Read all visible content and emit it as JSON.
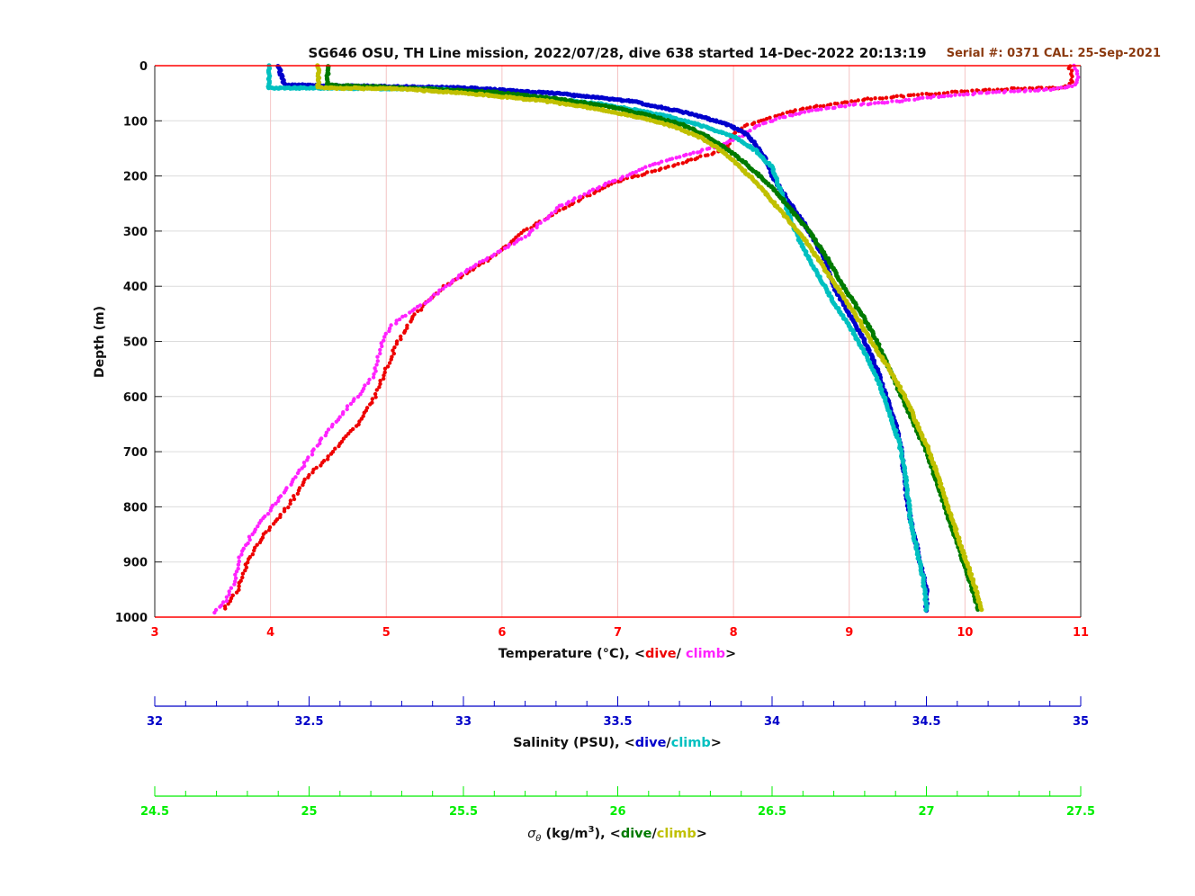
{
  "title": "SG646 OSU, TH Line mission, 2022/07/28, dive 638 started 14-Dec-2022 20:13:19",
  "serial_text": "Serial #: 0371  CAL: 25-Sep-2021",
  "colors": {
    "temp_dive": "#ee0000",
    "temp_climb": "#ff22ff",
    "sal_dive": "#0000cc",
    "sal_climb": "#00c0c0",
    "sig_dive": "#007a00",
    "sig_climb": "#c0c000",
    "temp_axis": "#ff0000",
    "sal_axis": "#0000c8",
    "sig_axis": "#00ee00",
    "serial": "#8b3a10"
  },
  "chart_data": {
    "type": "scatter",
    "ylabel": "Depth (m)",
    "ylim": [
      0,
      1000
    ],
    "y_ticks": [
      0,
      100,
      200,
      300,
      400,
      500,
      600,
      700,
      800,
      900,
      1000
    ],
    "grid": true,
    "axes": [
      {
        "id": "temperature",
        "label_main": "Temperature (°C), <",
        "label_dive": "dive",
        "label_sep": "/ ",
        "label_climb": "climb",
        "label_end": ">",
        "xlim": [
          3,
          11
        ],
        "ticks": [
          "3",
          "4",
          "5",
          "6",
          "7",
          "8",
          "9",
          "10",
          "11"
        ]
      },
      {
        "id": "salinity",
        "label_main": "Salinity (PSU), <",
        "label_dive": "dive",
        "label_sep": "/",
        "label_climb": "climb",
        "label_end": ">",
        "xlim": [
          32,
          35
        ],
        "ticks": [
          "32",
          "32.5",
          "33",
          "33.5",
          "34",
          "34.5",
          "35"
        ]
      },
      {
        "id": "sigma",
        "label_sym": "σ",
        "label_sub": "θ",
        "label_main": " (kg/m",
        "label_sup": "3",
        "label_main2": "), <",
        "label_dive": "dive",
        "label_sep": "/",
        "label_climb": "climb",
        "label_end": ">",
        "xlim": [
          24.5,
          27.5
        ],
        "ticks": [
          "24.5",
          "25",
          "25.5",
          "26",
          "26.5",
          "27",
          "27.5"
        ]
      }
    ],
    "series": [
      {
        "axis": "temperature",
        "color_key": "temp_dive",
        "style": "dots",
        "points": [
          [
            10.9,
            0
          ],
          [
            10.92,
            15
          ],
          [
            10.93,
            30
          ],
          [
            10.85,
            40
          ],
          [
            10.4,
            42
          ],
          [
            10.0,
            46
          ],
          [
            9.6,
            53
          ],
          [
            9.2,
            60
          ],
          [
            8.9,
            68
          ],
          [
            8.6,
            78
          ],
          [
            8.35,
            92
          ],
          [
            8.1,
            110
          ],
          [
            8.0,
            125
          ],
          [
            7.95,
            150
          ],
          [
            7.5,
            180
          ],
          [
            7.0,
            210
          ],
          [
            6.6,
            250
          ],
          [
            6.2,
            300
          ],
          [
            5.9,
            350
          ],
          [
            5.5,
            400
          ],
          [
            5.25,
            450
          ],
          [
            5.1,
            500
          ],
          [
            5.0,
            550
          ],
          [
            4.9,
            600
          ],
          [
            4.75,
            650
          ],
          [
            4.55,
            700
          ],
          [
            4.3,
            750
          ],
          [
            4.15,
            800
          ],
          [
            3.95,
            850
          ],
          [
            3.8,
            900
          ],
          [
            3.72,
            950
          ],
          [
            3.58,
            990
          ]
        ]
      },
      {
        "axis": "temperature",
        "color_key": "temp_climb",
        "style": "dots",
        "points": [
          [
            10.95,
            0
          ],
          [
            10.97,
            20
          ],
          [
            10.96,
            35
          ],
          [
            10.8,
            42
          ],
          [
            10.3,
            48
          ],
          [
            9.8,
            55
          ],
          [
            9.4,
            65
          ],
          [
            9.0,
            72
          ],
          [
            8.65,
            82
          ],
          [
            8.4,
            95
          ],
          [
            8.2,
            110
          ],
          [
            8.1,
            125
          ],
          [
            7.8,
            150
          ],
          [
            7.3,
            180
          ],
          [
            6.9,
            215
          ],
          [
            6.5,
            255
          ],
          [
            6.2,
            310
          ],
          [
            5.7,
            370
          ],
          [
            5.4,
            420
          ],
          [
            5.05,
            470
          ],
          [
            4.95,
            510
          ],
          [
            4.9,
            560
          ],
          [
            4.75,
            600
          ],
          [
            4.5,
            660
          ],
          [
            4.3,
            720
          ],
          [
            4.1,
            780
          ],
          [
            3.9,
            830
          ],
          [
            3.75,
            880
          ],
          [
            3.7,
            930
          ],
          [
            3.62,
            970
          ],
          [
            3.5,
            995
          ]
        ]
      },
      {
        "axis": "salinity",
        "color_key": "sal_dive",
        "style": "thick",
        "points": [
          [
            32.4,
            0
          ],
          [
            32.42,
            35
          ],
          [
            33.0,
            40
          ],
          [
            33.3,
            50
          ],
          [
            33.55,
            65
          ],
          [
            33.72,
            85
          ],
          [
            33.85,
            105
          ],
          [
            33.92,
            125
          ],
          [
            33.95,
            145
          ],
          [
            33.98,
            170
          ],
          [
            34.0,
            200
          ],
          [
            34.06,
            250
          ],
          [
            34.12,
            300
          ],
          [
            34.17,
            350
          ],
          [
            34.2,
            400
          ],
          [
            34.25,
            450
          ],
          [
            34.3,
            500
          ],
          [
            34.34,
            550
          ],
          [
            34.37,
            600
          ],
          [
            34.4,
            650
          ],
          [
            34.42,
            700
          ],
          [
            34.43,
            750
          ],
          [
            34.44,
            800
          ],
          [
            34.46,
            850
          ],
          [
            34.48,
            900
          ],
          [
            34.5,
            950
          ],
          [
            34.5,
            990
          ]
        ]
      },
      {
        "axis": "salinity",
        "color_key": "sal_climb",
        "style": "thick",
        "points": [
          [
            32.37,
            0
          ],
          [
            32.37,
            40
          ],
          [
            32.9,
            42
          ],
          [
            33.2,
            55
          ],
          [
            33.45,
            70
          ],
          [
            33.65,
            90
          ],
          [
            33.78,
            110
          ],
          [
            33.88,
            130
          ],
          [
            33.95,
            155
          ],
          [
            34.0,
            185
          ],
          [
            34.03,
            230
          ],
          [
            34.06,
            280
          ],
          [
            34.1,
            330
          ],
          [
            34.15,
            380
          ],
          [
            34.2,
            430
          ],
          [
            34.26,
            480
          ],
          [
            34.31,
            530
          ],
          [
            34.35,
            580
          ],
          [
            34.38,
            630
          ],
          [
            34.41,
            680
          ],
          [
            34.43,
            730
          ],
          [
            34.44,
            780
          ],
          [
            34.45,
            830
          ],
          [
            34.47,
            880
          ],
          [
            34.49,
            930
          ],
          [
            34.5,
            990
          ]
        ]
      },
      {
        "axis": "sigma",
        "color_key": "sig_dive",
        "style": "thick",
        "points": [
          [
            25.06,
            0
          ],
          [
            25.06,
            35
          ],
          [
            25.3,
            40
          ],
          [
            25.6,
            48
          ],
          [
            25.8,
            60
          ],
          [
            25.98,
            75
          ],
          [
            26.1,
            90
          ],
          [
            26.2,
            105
          ],
          [
            26.28,
            125
          ],
          [
            26.35,
            150
          ],
          [
            26.42,
            180
          ],
          [
            26.5,
            220
          ],
          [
            26.56,
            260
          ],
          [
            26.62,
            300
          ],
          [
            26.68,
            350
          ],
          [
            26.73,
            400
          ],
          [
            26.79,
            450
          ],
          [
            26.84,
            500
          ],
          [
            26.88,
            550
          ],
          [
            26.92,
            600
          ],
          [
            26.96,
            650
          ],
          [
            27.0,
            700
          ],
          [
            27.03,
            750
          ],
          [
            27.06,
            800
          ],
          [
            27.09,
            850
          ],
          [
            27.12,
            900
          ],
          [
            27.15,
            950
          ],
          [
            27.17,
            990
          ]
        ]
      },
      {
        "axis": "sigma",
        "color_key": "sig_climb",
        "style": "thick",
        "points": [
          [
            25.03,
            0
          ],
          [
            25.03,
            40
          ],
          [
            25.3,
            42
          ],
          [
            25.55,
            52
          ],
          [
            25.78,
            65
          ],
          [
            25.95,
            80
          ],
          [
            26.08,
            95
          ],
          [
            26.18,
            110
          ],
          [
            26.27,
            130
          ],
          [
            26.34,
            155
          ],
          [
            26.4,
            185
          ],
          [
            26.47,
            225
          ],
          [
            26.53,
            265
          ],
          [
            26.6,
            310
          ],
          [
            26.66,
            360
          ],
          [
            26.72,
            410
          ],
          [
            26.78,
            460
          ],
          [
            26.82,
            500
          ],
          [
            26.88,
            550
          ],
          [
            26.93,
            600
          ],
          [
            26.97,
            650
          ],
          [
            27.01,
            700
          ],
          [
            27.04,
            750
          ],
          [
            27.07,
            800
          ],
          [
            27.1,
            850
          ],
          [
            27.13,
            900
          ],
          [
            27.16,
            950
          ],
          [
            27.18,
            990
          ]
        ]
      }
    ]
  }
}
